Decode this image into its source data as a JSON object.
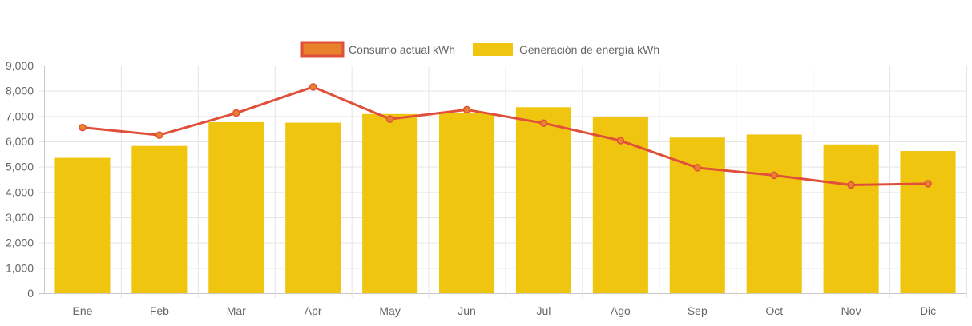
{
  "chart_data": {
    "type": "bar",
    "categories": [
      "Ene",
      "Feb",
      "Mar",
      "Apr",
      "May",
      "Jun",
      "Jul",
      "Ago",
      "Sep",
      "Oct",
      "Nov",
      "Dic"
    ],
    "series": [
      {
        "name": "Consumo actual kWh",
        "type": "line",
        "color": "#e04f3a",
        "point_color": "#e8822a",
        "values": [
          6550,
          6250,
          7120,
          8150,
          6880,
          7250,
          6720,
          6030,
          4960,
          4660,
          4280,
          4330
        ]
      },
      {
        "name": "Generación de energía kWh",
        "type": "bar",
        "color": "#f0c510",
        "values": [
          5350,
          5820,
          6760,
          6740,
          7080,
          7120,
          7350,
          6980,
          6150,
          6270,
          5880,
          5620
        ]
      }
    ],
    "ylim": [
      0,
      9000
    ],
    "yticks": [
      "0",
      "1,000",
      "2,000",
      "3,000",
      "4,000",
      "5,000",
      "6,000",
      "7,000",
      "8,000",
      "9,000"
    ],
    "ytick_values": [
      0,
      1000,
      2000,
      3000,
      4000,
      5000,
      6000,
      7000,
      8000,
      9000
    ],
    "grid": true,
    "legend": "top-center",
    "title": "",
    "xlabel": "",
    "ylabel": ""
  }
}
